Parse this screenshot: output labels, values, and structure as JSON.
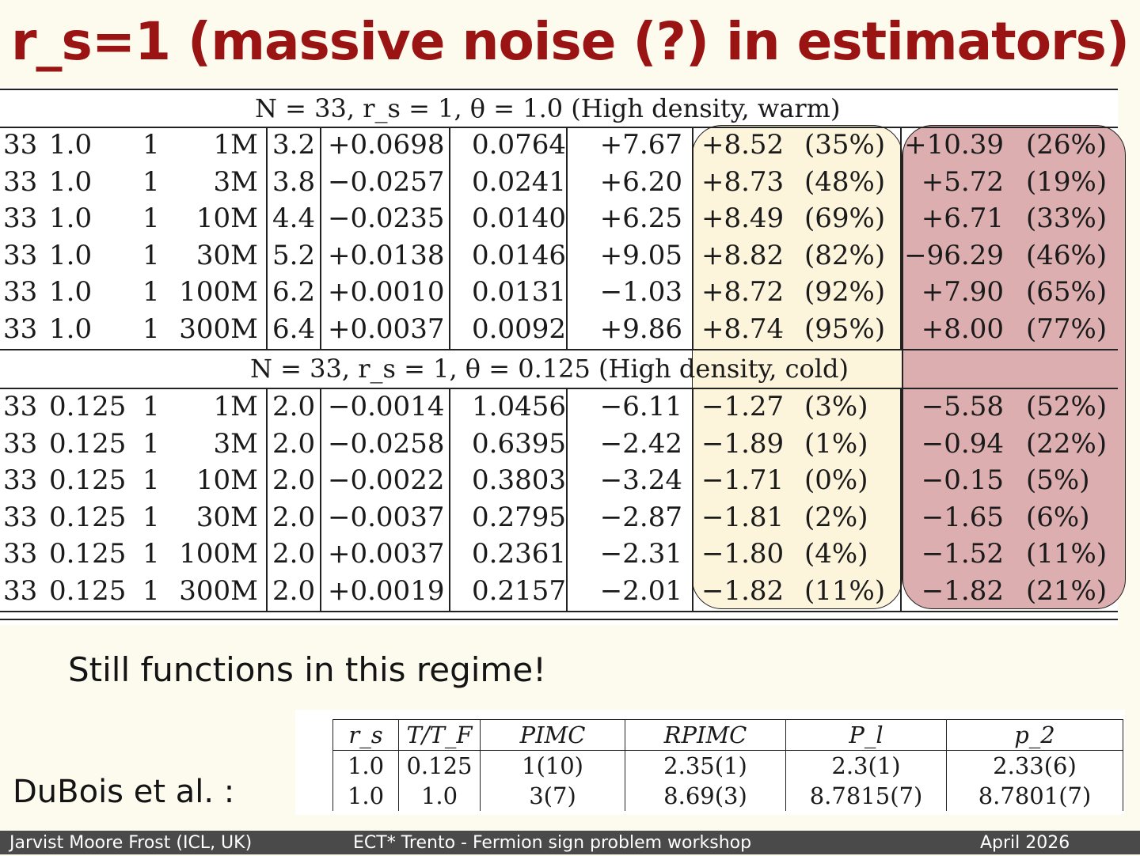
{
  "title": "r_s=1 (massive noise (?) in estimators)",
  "big_table": {
    "section_warm": "N = 33, r_s = 1, θ = 1.0 (High density, warm)",
    "section_cold": "N = 33, r_s = 1, θ = 0.125 (High density, cold)",
    "rows_warm": [
      [
        "33",
        "1.0",
        "1",
        "1M",
        "3.2",
        "+0.0698",
        "0.0764",
        "+7.67",
        "+8.52",
        "(35%)",
        "+10.39",
        "(26%)"
      ],
      [
        "33",
        "1.0",
        "1",
        "3M",
        "3.8",
        "−0.0257",
        "0.0241",
        "+6.20",
        "+8.73",
        "(48%)",
        "+5.72",
        "(19%)"
      ],
      [
        "33",
        "1.0",
        "1",
        "10M",
        "4.4",
        "−0.0235",
        "0.0140",
        "+6.25",
        "+8.49",
        "(69%)",
        "+6.71",
        "(33%)"
      ],
      [
        "33",
        "1.0",
        "1",
        "30M",
        "5.2",
        "+0.0138",
        "0.0146",
        "+9.05",
        "+8.82",
        "(82%)",
        "−96.29",
        "(46%)"
      ],
      [
        "33",
        "1.0",
        "1",
        "100M",
        "6.2",
        "+0.0010",
        "0.0131",
        "−1.03",
        "+8.72",
        "(92%)",
        "+7.90",
        "(65%)"
      ],
      [
        "33",
        "1.0",
        "1",
        "300M",
        "6.4",
        "+0.0037",
        "0.0092",
        "+9.86",
        "+8.74",
        "(95%)",
        "+8.00",
        "(77%)"
      ]
    ],
    "rows_cold": [
      [
        "33",
        "0.125",
        "1",
        "1M",
        "2.0",
        "−0.0014",
        "1.0456",
        "−6.11",
        "−1.27",
        "(3%)",
        "−5.58",
        "(52%)"
      ],
      [
        "33",
        "0.125",
        "1",
        "3M",
        "2.0",
        "−0.0258",
        "0.6395",
        "−2.42",
        "−1.89",
        "(1%)",
        "−0.94",
        "(22%)"
      ],
      [
        "33",
        "0.125",
        "1",
        "10M",
        "2.0",
        "−0.0022",
        "0.3803",
        "−3.24",
        "−1.71",
        "(0%)",
        "−0.15",
        "(5%)"
      ],
      [
        "33",
        "0.125",
        "1",
        "30M",
        "2.0",
        "−0.0037",
        "0.2795",
        "−2.87",
        "−1.81",
        "(2%)",
        "−1.65",
        "(6%)"
      ],
      [
        "33",
        "0.125",
        "1",
        "100M",
        "2.0",
        "+0.0037",
        "0.2361",
        "−2.31",
        "−1.80",
        "(4%)",
        "−1.52",
        "(11%)"
      ],
      [
        "33",
        "0.125",
        "1",
        "300M",
        "2.0",
        "+0.0019",
        "0.2157",
        "−2.01",
        "−1.82",
        "(11%)",
        "−1.82",
        "(21%)"
      ]
    ],
    "highlight_colors": {
      "yellow": "#fdf4dc",
      "red": "#dcaeb0"
    }
  },
  "note": "Still functions in this regime!",
  "citation": "DuBois et al. :",
  "small_table": {
    "headers": [
      "r_s",
      "T/T_F",
      "PIMC",
      "RPIMC",
      "P_l",
      "p_2"
    ],
    "rows": [
      [
        "1.0",
        "0.125",
        "1(10)",
        "2.35(1)",
        "2.3(1)",
        "2.33(6)"
      ],
      [
        "1.0",
        "1.0",
        "3(7)",
        "8.69(3)",
        "8.7815(7)",
        "8.7801(7)"
      ]
    ]
  },
  "footer": {
    "author": "Jarvist Moore Frost  (ICL, UK)",
    "event": "ECT* Trento - Fermion sign problem workshop",
    "date": "April  2026"
  },
  "colors": {
    "title": "#9b1414",
    "background": "#fdfaee",
    "footer_bar": "#4a4a4a"
  }
}
